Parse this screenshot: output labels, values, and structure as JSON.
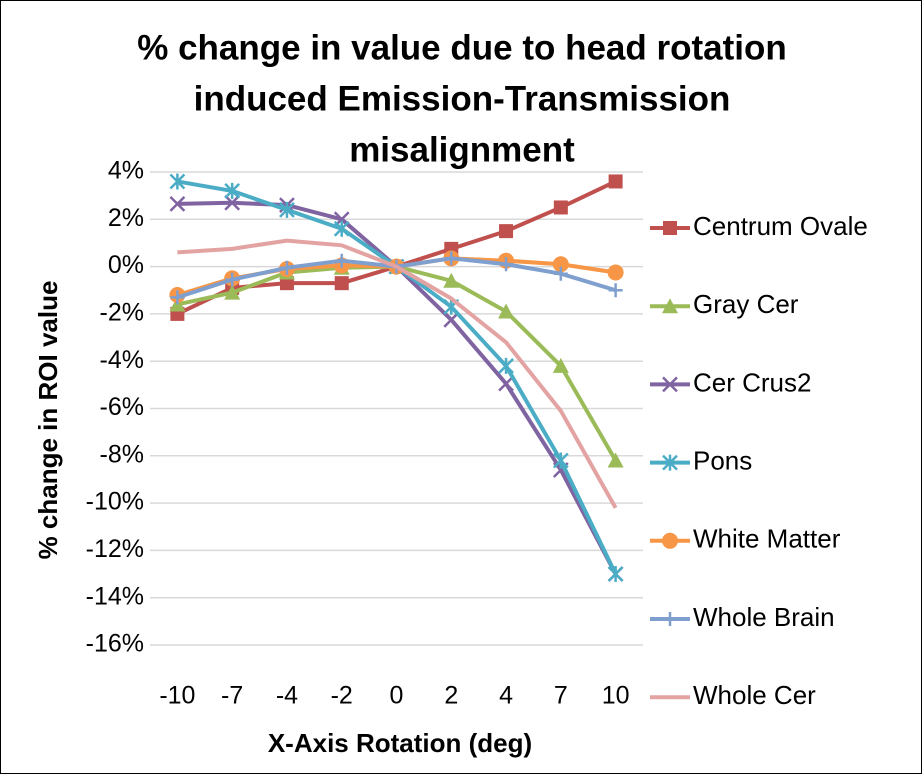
{
  "chart_data": {
    "type": "line",
    "title_lines": [
      "% change in value due to head rotation",
      "induced Emission-Transmission",
      "misalignment"
    ],
    "x_label": "X-Axis Rotation (deg)",
    "y_label": "% change in ROI value",
    "categories": [
      "-10",
      "-7",
      "-4",
      "-2",
      "0",
      "2",
      "4",
      "7",
      "10"
    ],
    "ylim": [
      -16,
      4
    ],
    "yticks": [
      {
        "value": -16,
        "label": "-16%"
      },
      {
        "value": -14,
        "label": "-14%"
      },
      {
        "value": -12,
        "label": "-12%"
      },
      {
        "value": -10,
        "label": "-10%"
      },
      {
        "value": -8,
        "label": "-8%"
      },
      {
        "value": -6,
        "label": "-6%"
      },
      {
        "value": -4,
        "label": "-4%"
      },
      {
        "value": -2,
        "label": "-2%"
      },
      {
        "value": 0,
        "label": "0%"
      },
      {
        "value": 2,
        "label": "2%"
      },
      {
        "value": 4,
        "label": "4%"
      }
    ],
    "grid": true,
    "legend": "right",
    "series": [
      {
        "name": "Centrum Ovale",
        "color": "#c0504d",
        "marker": "square",
        "values": [
          -2.0,
          -0.9,
          -0.7,
          -0.7,
          0,
          0.75,
          1.5,
          2.5,
          3.6
        ]
      },
      {
        "name": "Gray Cer",
        "color": "#9bbb59",
        "marker": "triangle",
        "values": [
          -1.6,
          -1.1,
          -0.25,
          -0.05,
          0,
          -0.6,
          -1.9,
          -4.2,
          -8.2
        ]
      },
      {
        "name": "Cer Crus2",
        "color": "#8064a2",
        "marker": "x",
        "values": [
          2.65,
          2.7,
          2.6,
          2.0,
          0,
          -2.25,
          -4.95,
          -8.6,
          -13.0
        ]
      },
      {
        "name": "Pons",
        "color": "#4bacc6",
        "marker": "star",
        "values": [
          3.6,
          3.2,
          2.4,
          1.6,
          0,
          -1.7,
          -4.2,
          -8.2,
          -13.0
        ]
      },
      {
        "name": "White Matter",
        "color": "#f79646",
        "marker": "circle",
        "values": [
          -1.2,
          -0.5,
          -0.1,
          0.05,
          0,
          0.35,
          0.25,
          0.1,
          -0.25
        ]
      },
      {
        "name": "Whole Brain",
        "color": "#7f9fcf",
        "marker": "plus",
        "values": [
          -1.3,
          -0.55,
          -0.05,
          0.25,
          0,
          0.35,
          0.1,
          -0.3,
          -1.0
        ]
      },
      {
        "name": "Whole Cer",
        "color": "#e2a3a2",
        "marker": "none",
        "values": [
          0.6,
          0.75,
          1.1,
          0.9,
          0,
          -1.35,
          -3.2,
          -6.1,
          -10.2
        ]
      }
    ]
  }
}
